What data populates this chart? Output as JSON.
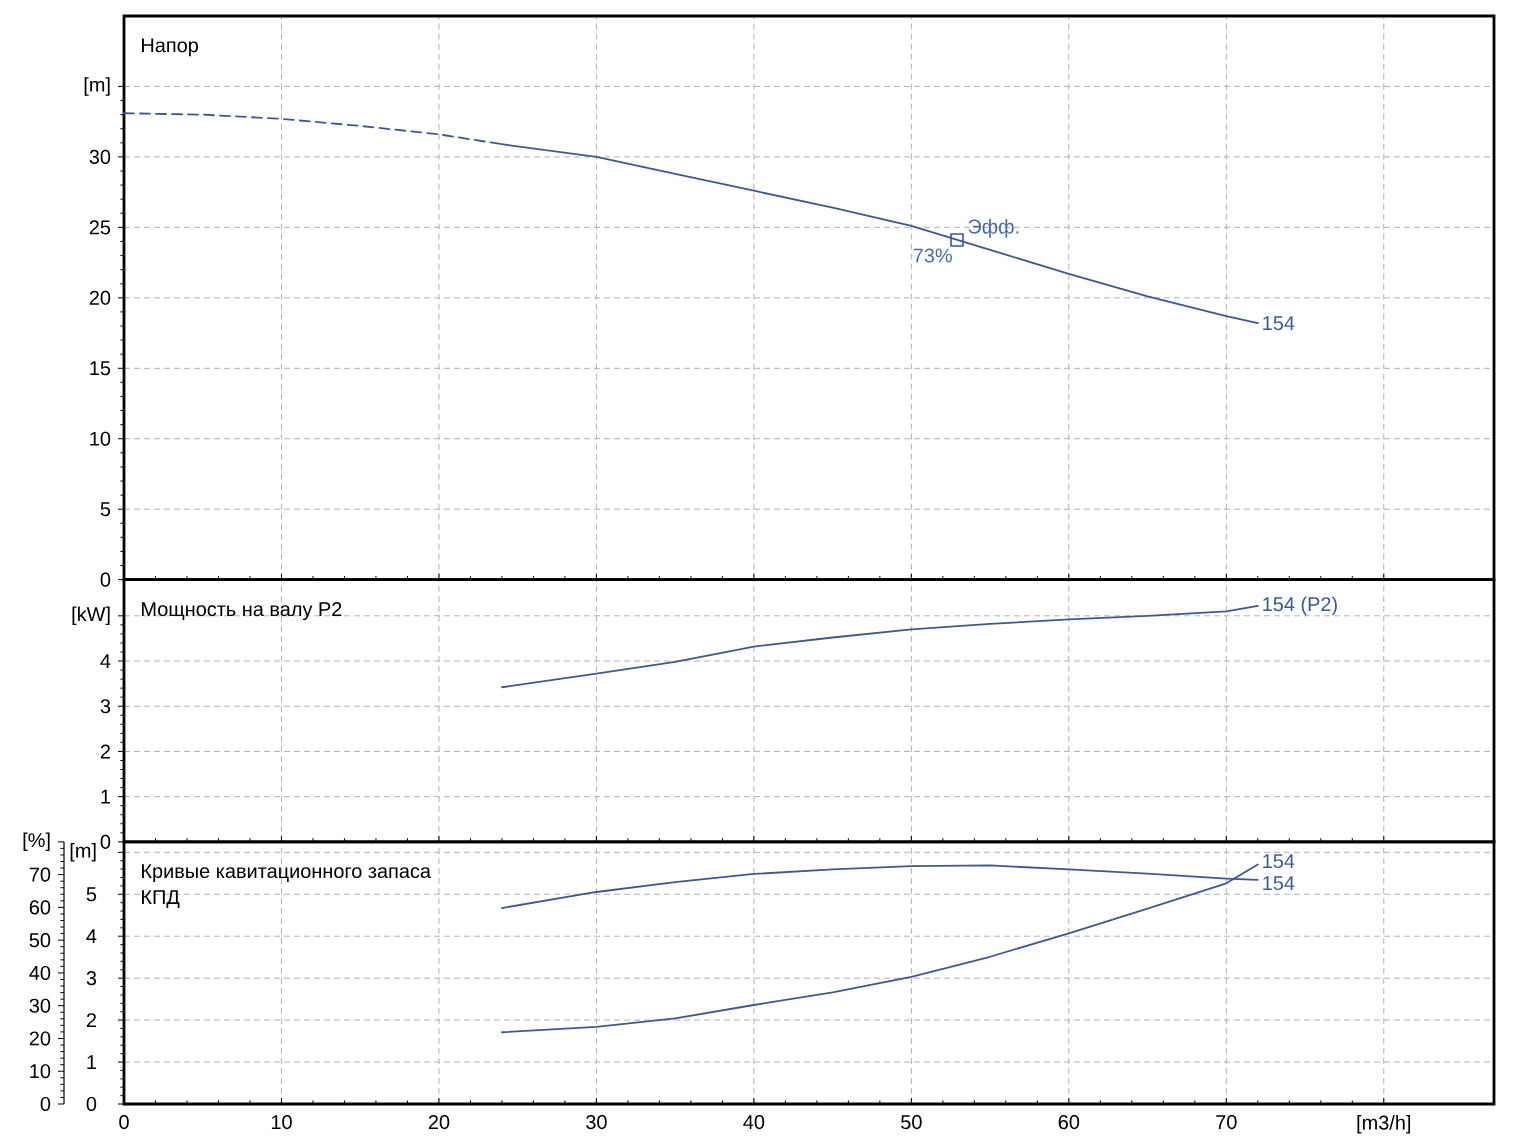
{
  "chart_data": [
    {
      "type": "line",
      "title": "Напор",
      "xlim": [
        0,
        87
      ],
      "xticks": [
        0,
        10,
        20,
        30,
        40,
        50,
        60,
        70,
        80
      ],
      "ylim": [
        0,
        40
      ],
      "yticks": [
        0,
        5,
        10,
        15,
        20,
        25,
        30,
        {
          "value": 35,
          "label": "[m]"
        }
      ],
      "tick_labels": "y",
      "grid": true,
      "series": [
        {
          "color": "#3b5998",
          "line_style": "dashed",
          "x": [
            0,
            5,
            10,
            15,
            20,
            24
          ],
          "values": [
            33.1,
            33.0,
            32.7,
            32.2,
            31.6,
            30.9
          ]
        },
        {
          "name": "154",
          "color": "#3b5998",
          "x": [
            24,
            30,
            35,
            40,
            45,
            50,
            55,
            60,
            65,
            70,
            72
          ],
          "values": [
            30.9,
            30.0,
            28.8,
            27.6,
            26.4,
            25.1,
            23.4,
            21.7,
            20.1,
            18.7,
            18.2
          ]
        },
        {
          "type": "scatter",
          "marker": "square",
          "color": "#3b5998",
          "x": [
            52.9
          ],
          "values": [
            24.1
          ]
        }
      ],
      "annotations": [
        {
          "text": "Эфф.",
          "x": 52.9,
          "y": 24.1
        },
        {
          "text": "73%",
          "x": 52.9,
          "y": 24.1
        }
      ]
    },
    {
      "type": "line",
      "title": "Мощность на валу P2",
      "xlim": [
        0,
        87
      ],
      "xticks": [
        0,
        10,
        20,
        30,
        40,
        50,
        60,
        70,
        80
      ],
      "ylim": [
        0,
        5.8
      ],
      "yticks": [
        0,
        1,
        2,
        3,
        4,
        {
          "value": 5,
          "label": "[kW]"
        }
      ],
      "tick_labels": "y",
      "grid": true,
      "series": [
        {
          "name": "154 (P2)",
          "color": "#3b5998",
          "x": [
            24,
            30,
            35,
            40,
            45,
            50,
            55,
            60,
            65,
            70,
            72
          ],
          "values": [
            3.42,
            3.72,
            3.98,
            4.32,
            4.52,
            4.7,
            4.82,
            4.92,
            5.0,
            5.1,
            5.22
          ]
        }
      ]
    },
    {
      "type": "line",
      "title": "Кривые кавитационного запаса",
      "subtitle": "КПД",
      "xlim": [
        0,
        87
      ],
      "xticks": [
        0,
        10,
        20,
        30,
        40,
        50,
        60,
        70,
        {
          "value": 80,
          "label": "[m3/h]"
        }
      ],
      "ylim": [
        0,
        6.25
      ],
      "yticks": [
        0,
        1,
        2,
        3,
        4,
        5,
        {
          "value": 6,
          "label": "[m]"
        }
      ],
      "y2lim": [
        0,
        80
      ],
      "y2ticks": [
        0,
        10,
        20,
        30,
        40,
        50,
        60,
        70,
        {
          "value": 80,
          "label": "[%]"
        }
      ],
      "grid": true,
      "series": [
        {
          "name": "154",
          "color": "#3b5998",
          "axis": "y2",
          "x": [
            24,
            30,
            35,
            40,
            45,
            50,
            55,
            60,
            65,
            70,
            72
          ],
          "values": [
            59.8,
            64.7,
            67.7,
            70.2,
            71.6,
            72.6,
            72.8,
            71.6,
            70.3,
            68.8,
            68.4
          ]
        },
        {
          "name": "154",
          "color": "#3b5998",
          "x": [
            24,
            30,
            35,
            40,
            45,
            50,
            55,
            60,
            65,
            70,
            72
          ],
          "values": [
            1.71,
            1.84,
            2.04,
            2.36,
            2.66,
            3.03,
            3.51,
            4.07,
            4.66,
            5.26,
            5.71
          ]
        }
      ]
    }
  ]
}
